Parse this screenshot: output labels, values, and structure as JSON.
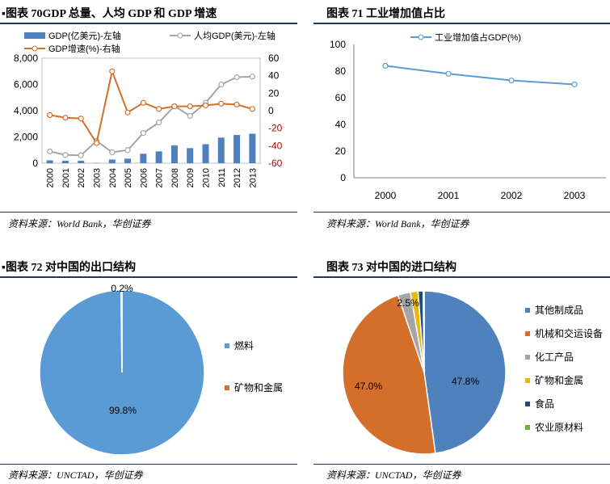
{
  "panels": {
    "p70": {
      "title": "▪图表 70GDP 总量、人均 GDP 和 GDP 增速",
      "source": "资料来源：World Bank，华创证券"
    },
    "p71": {
      "title": "图表 71 工业增加值占比",
      "source": "资料来源：World Bank，华创证券"
    },
    "p72": {
      "title": "▪图表 72 对中国的出口结构",
      "source": "资料来源：UNCTAD，华创证券"
    },
    "p73": {
      "title": "图表 73 对中国的进口结构",
      "source": "资料来源：UNCTAD，华创证券"
    }
  },
  "colors": {
    "blue": "#4f81bd",
    "orange": "#d46f2b",
    "gray": "#a5a5a5",
    "gold": "#e5b80b",
    "navy": "#1f4e79",
    "green": "#70ad47",
    "red_axis": "#c00000",
    "pie_blue": "#5b9bd5"
  },
  "chart_data": [
    {
      "type": "bar",
      "id": "chart70",
      "title": "GDP 总量、人均 GDP 和 GDP 增速",
      "categories": [
        "2000",
        "2001",
        "2002",
        "2003",
        "2004",
        "2005",
        "2006",
        "2007",
        "2008",
        "2009",
        "2010",
        "2011",
        "2012",
        "2013"
      ],
      "series": [
        {
          "name": "GDP(亿美元)-左轴",
          "kind": "bar",
          "axis": "left",
          "values": [
            220,
            190,
            190,
            20,
            280,
            350,
            720,
            900,
            1350,
            1150,
            1450,
            1950,
            2150,
            2250
          ]
        },
        {
          "name": "人均GDP(美元)-左轴",
          "kind": "line",
          "axis": "left",
          "values": [
            900,
            630,
            600,
            1700,
            830,
            1000,
            2300,
            3100,
            4350,
            3600,
            4600,
            6000,
            6550,
            6600
          ]
        },
        {
          "name": "GDP增速(%)-右轴",
          "kind": "line",
          "axis": "right",
          "values": [
            -5,
            -8,
            -9,
            -37,
            45,
            -2,
            9,
            2,
            5,
            5,
            6,
            8,
            7,
            2
          ]
        }
      ],
      "yleft": {
        "range": [
          0,
          8000
        ],
        "ticks": [
          "0",
          "2,000",
          "4,000",
          "6,000",
          "8,000"
        ]
      },
      "yright": {
        "range": [
          -60,
          60
        ],
        "ticks": [
          "-60",
          "-40",
          "-20",
          "0",
          "20",
          "40",
          "60"
        ]
      }
    },
    {
      "type": "line",
      "id": "chart71",
      "title": "工业增加值占比",
      "categories": [
        "2000",
        "2001",
        "2002",
        "2003"
      ],
      "series": [
        {
          "name": "工业增加值占GDP(%)",
          "values": [
            84,
            78,
            73,
            70
          ]
        }
      ],
      "ylim": [
        0,
        100
      ],
      "yticks": [
        "0",
        "20",
        "40",
        "60",
        "80",
        "100"
      ]
    },
    {
      "type": "pie",
      "id": "chart72",
      "title": "对中国的出口结构",
      "slices": [
        {
          "name": "燃料",
          "value": 99.8,
          "label": "99.8%"
        },
        {
          "name": "矿物和金属",
          "value": 0.2,
          "label": "0.2%"
        }
      ]
    },
    {
      "type": "pie",
      "id": "chart73",
      "title": "对中国的进口结构",
      "slices": [
        {
          "name": "其他制成品",
          "value": 47.8,
          "label": "47.8%"
        },
        {
          "name": "机械和交运设备",
          "value": 47.0,
          "label": "47.0%"
        },
        {
          "name": "化工产品",
          "value": 2.5,
          "label": "2.5%"
        },
        {
          "name": "矿物和金属",
          "value": 1.5,
          "label": ""
        },
        {
          "name": "食品",
          "value": 1.0,
          "label": ""
        },
        {
          "name": "农业原材料",
          "value": 0.2,
          "label": ""
        }
      ]
    }
  ]
}
